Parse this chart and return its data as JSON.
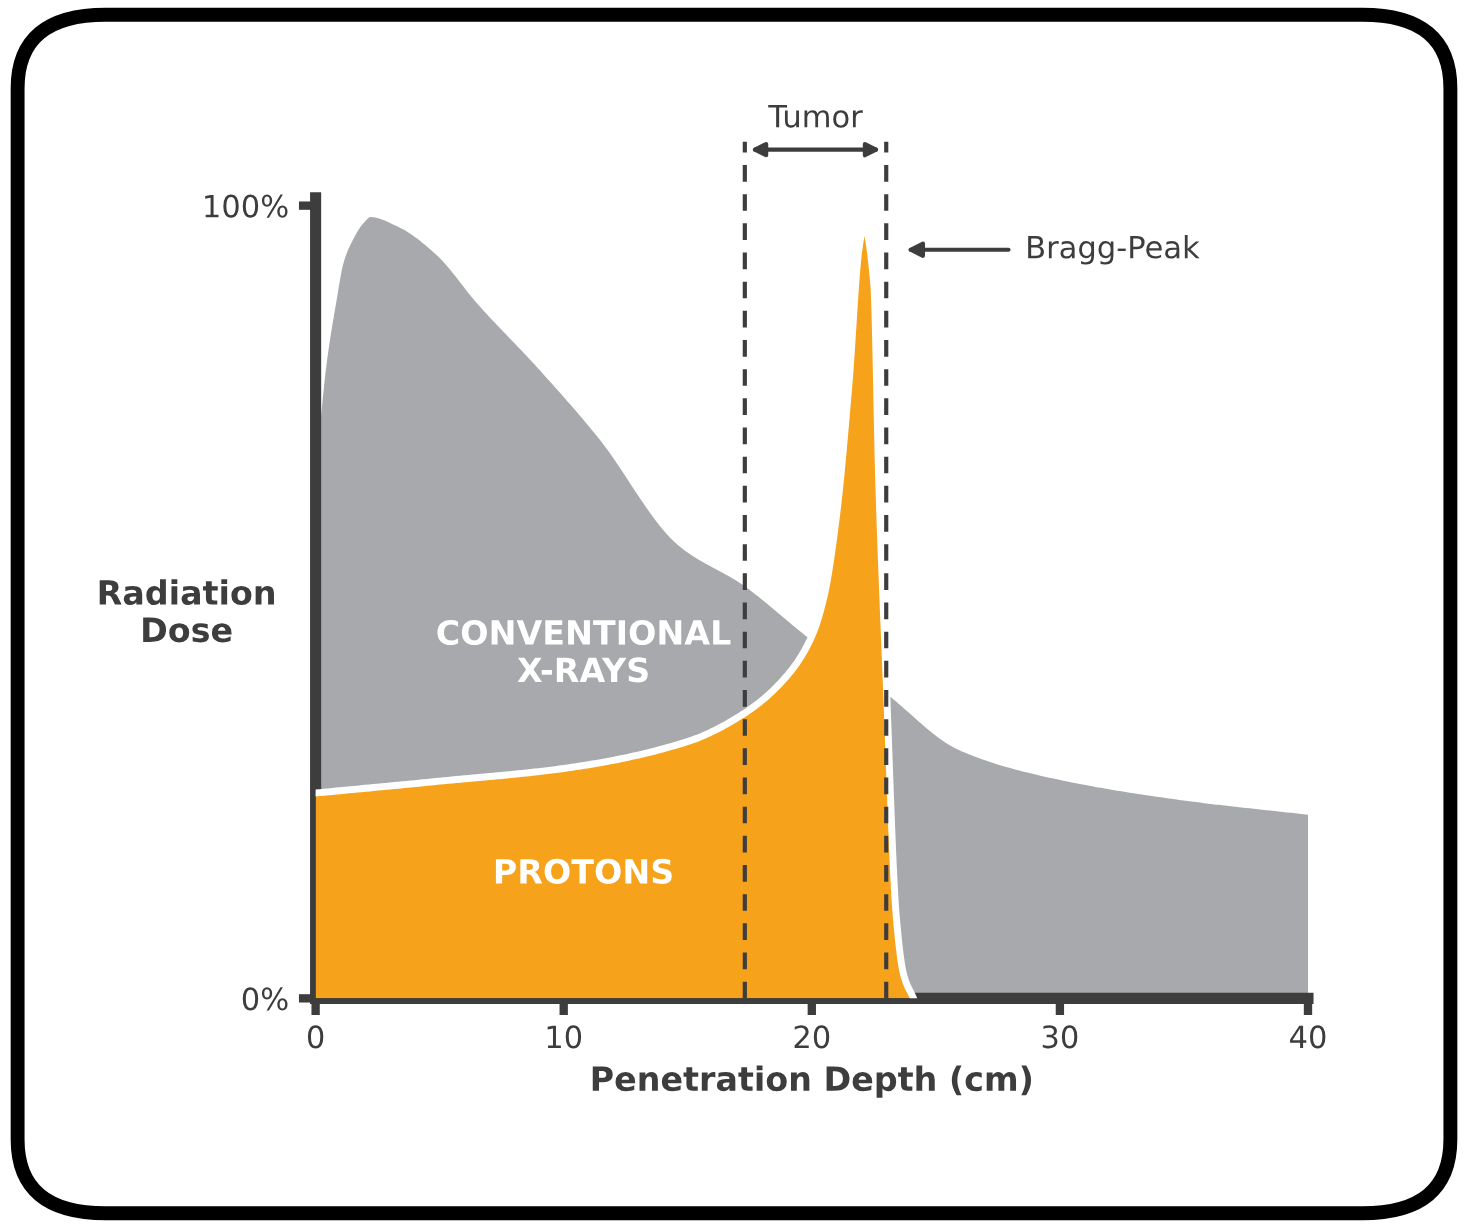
{
  "chart_data": {
    "type": "area",
    "xlabel": "Penetration Depth (cm)",
    "ylabel": "Radiation\nDose",
    "series": [
      {
        "name": "CONVENTIONAL\nX-RAYS",
        "color": "#a7a9ac",
        "x": [
          0,
          0.3,
          0.7,
          1.0,
          1.4,
          1.8,
          2.2,
          3.4,
          5,
          6.6,
          9,
          11.5,
          14.7,
          17.3,
          20,
          23,
          26,
          30,
          35,
          40
        ],
        "values": [
          71,
          80,
          88,
          93,
          96,
          98,
          99,
          97.7,
          94,
          88,
          80,
          71,
          57.5,
          52.5,
          45.7,
          39,
          31.7,
          28,
          25.4,
          23.6
        ]
      },
      {
        "name": "PROTONS",
        "color": "#f7a21b",
        "x": [
          0,
          5,
          10,
          15,
          17.3,
          19,
          20,
          20.5,
          21,
          21.5,
          21.9,
          22.1,
          22.5,
          22.7,
          23,
          23.4,
          23.7,
          24.1
        ],
        "values": [
          25.9,
          27.4,
          29,
          32.4,
          36,
          40.7,
          45.7,
          50.8,
          61,
          77.6,
          94.5,
          97.5,
          90,
          65,
          40,
          10.5,
          3,
          0
        ]
      }
    ],
    "xlim": [
      0,
      40
    ],
    "ylim": [
      0,
      101
    ],
    "xticks": [
      0,
      10,
      20,
      30,
      40
    ],
    "yticks": [
      {
        "value": 0,
        "label": "0%"
      },
      {
        "value": 100,
        "label": "100%"
      }
    ],
    "ref_lines": [
      {
        "axis": "x",
        "value": 17.3,
        "line_style": "dashed",
        "color": "#3d3d3d"
      },
      {
        "axis": "x",
        "value": 23,
        "line_style": "dashed",
        "color": "#3d3d3d"
      }
    ],
    "annotations": [
      "Tumor",
      "Bragg-Peak"
    ],
    "grid": false,
    "legend": false
  }
}
